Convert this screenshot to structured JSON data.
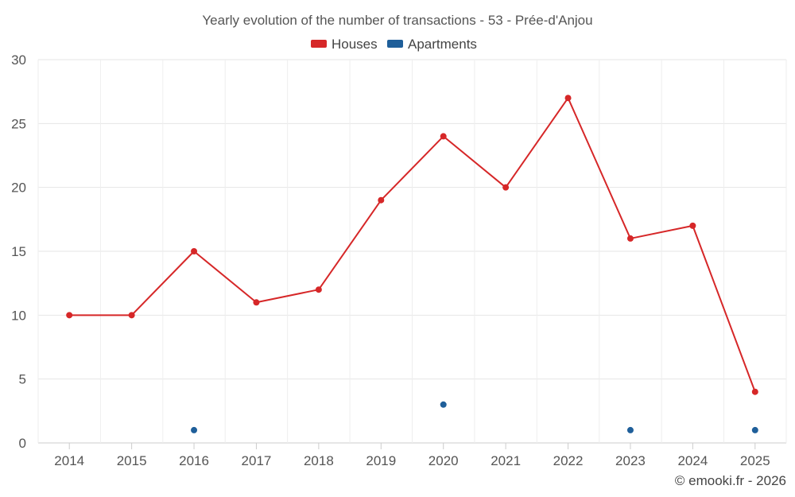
{
  "chart_data": {
    "type": "line",
    "title": "Yearly evolution of the number of transactions - 53 - Prée-d'Anjou",
    "categories": [
      "2014",
      "2015",
      "2016",
      "2017",
      "2018",
      "2019",
      "2020",
      "2021",
      "2022",
      "2023",
      "2024",
      "2025"
    ],
    "ylim": [
      0,
      30
    ],
    "yticks": [
      0,
      5,
      10,
      15,
      20,
      25,
      30
    ],
    "grid": true,
    "legend": "top-center",
    "series": [
      {
        "name": "Houses",
        "color": "#d62728",
        "style": "line-with-markers",
        "values": [
          10,
          10,
          15,
          11,
          12,
          19,
          24,
          20,
          27,
          16,
          17,
          4
        ]
      },
      {
        "name": "Apartments",
        "color": "#1f5f9a",
        "style": "markers-only",
        "values": [
          null,
          null,
          1,
          null,
          null,
          null,
          3,
          null,
          null,
          1,
          null,
          1
        ]
      }
    ],
    "credit": "© emooki.fr - 2026"
  }
}
